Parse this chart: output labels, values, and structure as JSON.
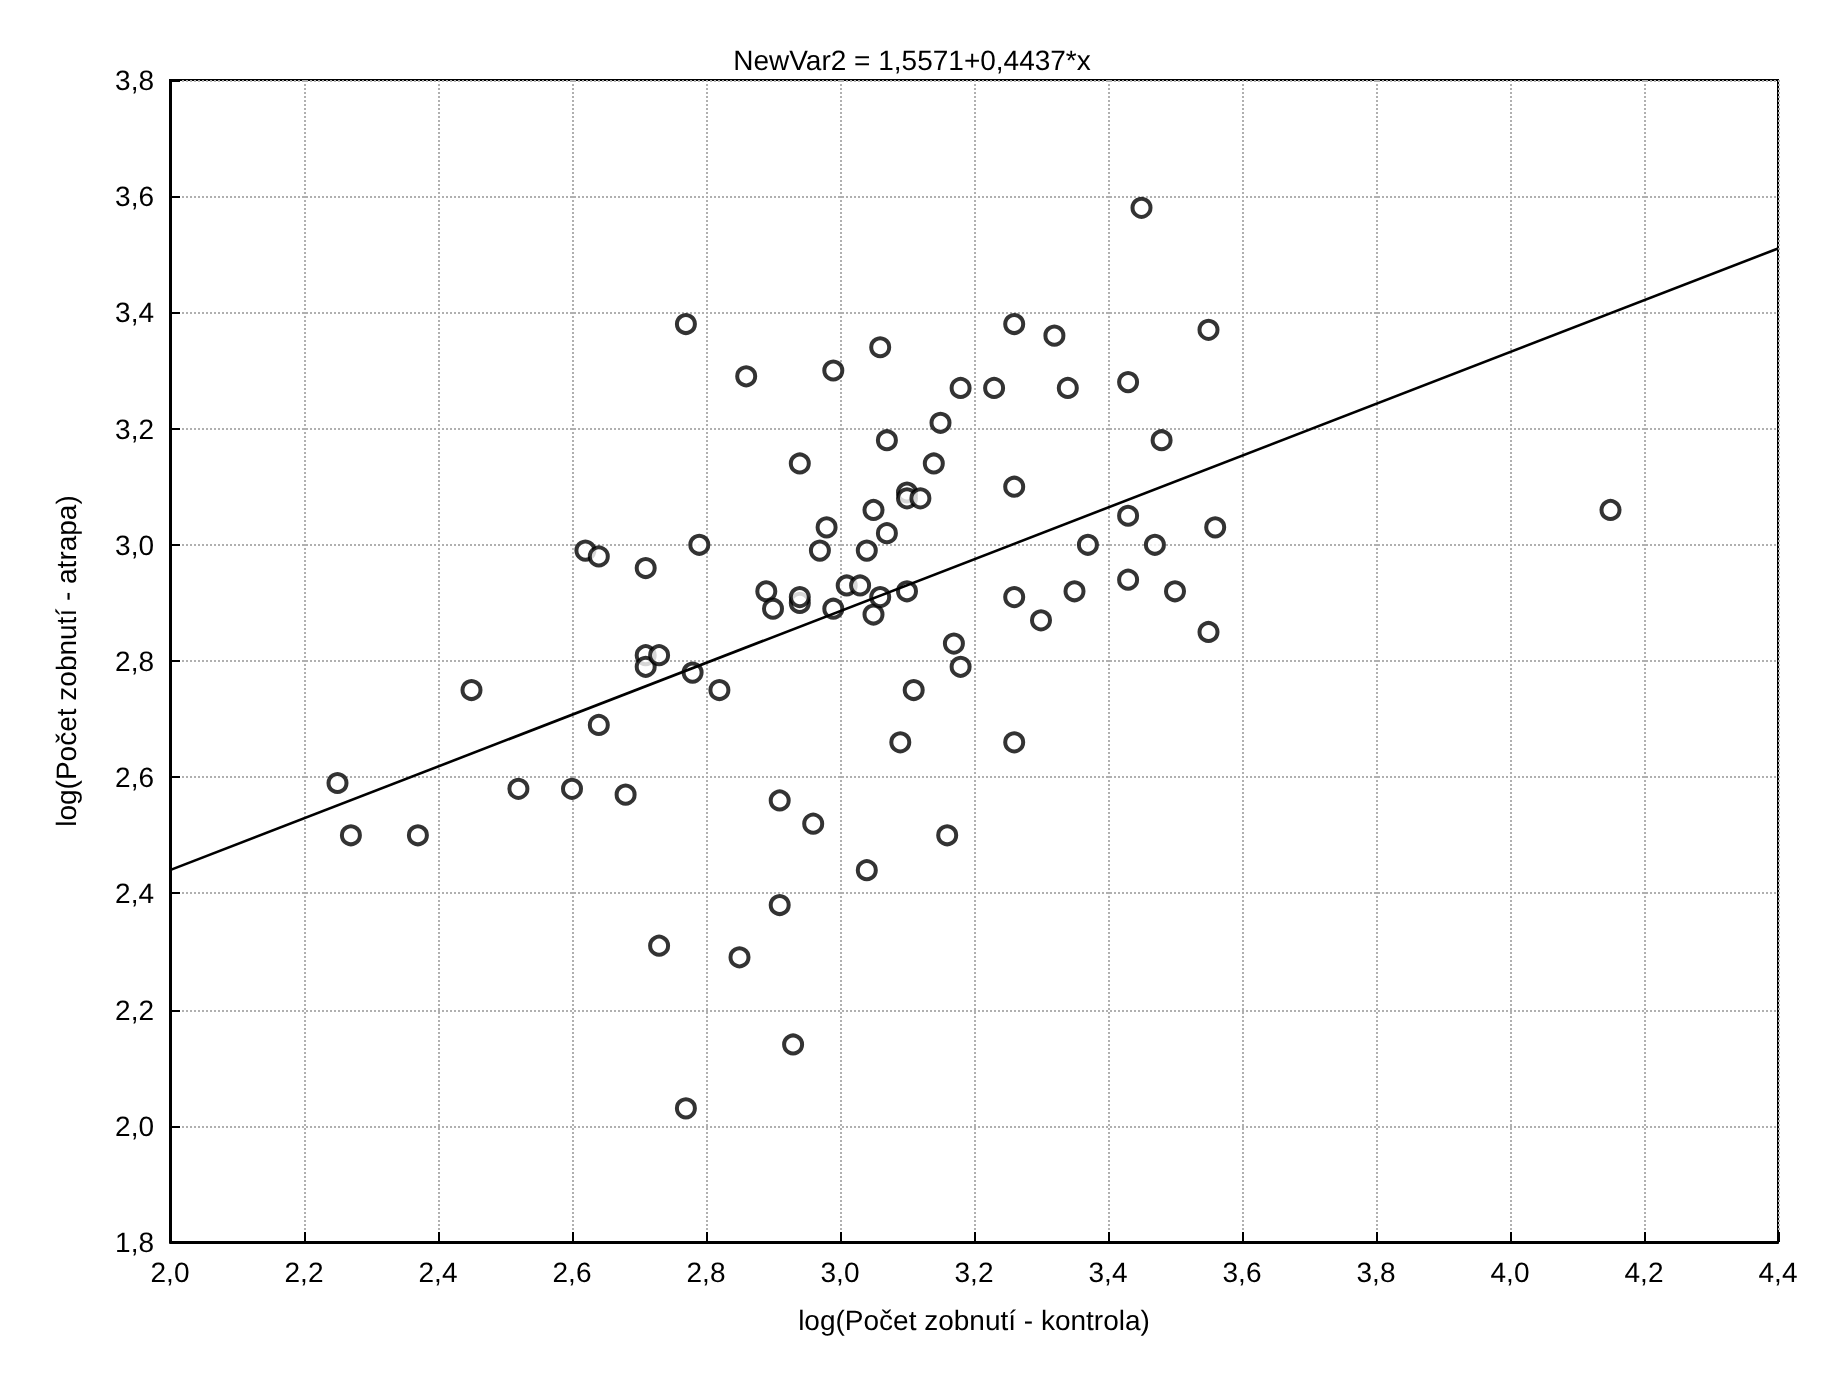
{
  "chart_data": {
    "type": "scatter",
    "title": "NewVar2 = 1,5571+0,4437*x",
    "xlabel": "log(Počet zobnutí - kontrola)",
    "ylabel": "log(Počet zobnutí - atrapa)",
    "grid": true,
    "marker": "circle",
    "xlim": [
      2.0,
      4.4
    ],
    "ylim": [
      1.8,
      3.8
    ],
    "xticks": [
      {
        "value": 2.0,
        "label": "2,0"
      },
      {
        "value": 2.2,
        "label": "2,2"
      },
      {
        "value": 2.4,
        "label": "2,4"
      },
      {
        "value": 2.6,
        "label": "2,6"
      },
      {
        "value": 2.8,
        "label": "2,8"
      },
      {
        "value": 3.0,
        "label": "3,0"
      },
      {
        "value": 3.2,
        "label": "3,2"
      },
      {
        "value": 3.4,
        "label": "3,4"
      },
      {
        "value": 3.6,
        "label": "3,6"
      },
      {
        "value": 3.8,
        "label": "3,8"
      },
      {
        "value": 4.0,
        "label": "4,0"
      },
      {
        "value": 4.2,
        "label": "4,2"
      },
      {
        "value": 4.4,
        "label": "4,4"
      }
    ],
    "yticks": [
      {
        "value": 1.8,
        "label": "1,8"
      },
      {
        "value": 2.0,
        "label": "2,0"
      },
      {
        "value": 2.2,
        "label": "2,2"
      },
      {
        "value": 2.4,
        "label": "2,4"
      },
      {
        "value": 2.6,
        "label": "2,6"
      },
      {
        "value": 2.8,
        "label": "2,8"
      },
      {
        "value": 3.0,
        "label": "3,0"
      },
      {
        "value": 3.2,
        "label": "3,2"
      },
      {
        "value": 3.4,
        "label": "3,4"
      },
      {
        "value": 3.6,
        "label": "3,6"
      },
      {
        "value": 3.8,
        "label": "3,8"
      }
    ],
    "series": [
      {
        "type": "scatter",
        "color": "#000000",
        "x": [
          2.25,
          2.27,
          2.37,
          2.45,
          2.52,
          2.6,
          2.62,
          2.64,
          2.64,
          2.68,
          2.71,
          2.71,
          2.71,
          2.73,
          2.73,
          2.77,
          2.77,
          2.78,
          2.79,
          2.82,
          2.85,
          2.86,
          2.89,
          2.9,
          2.91,
          2.91,
          2.93,
          2.94,
          2.94,
          2.94,
          2.96,
          2.97,
          2.98,
          2.99,
          2.99,
          3.01,
          3.03,
          3.04,
          3.04,
          3.05,
          3.05,
          3.06,
          3.06,
          3.07,
          3.07,
          3.09,
          3.1,
          3.1,
          3.1,
          3.11,
          3.12,
          3.14,
          3.15,
          3.16,
          3.17,
          3.18,
          3.18,
          3.23,
          3.26,
          3.26,
          3.26,
          3.26,
          3.3,
          3.32,
          3.34,
          3.35,
          3.37,
          3.43,
          3.43,
          3.43,
          3.45,
          3.47,
          3.48,
          3.5,
          3.55,
          3.55,
          3.56,
          4.15
        ],
        "values": [
          2.59,
          2.5,
          2.5,
          2.75,
          2.58,
          2.58,
          2.99,
          2.98,
          2.69,
          2.57,
          2.96,
          2.81,
          2.79,
          2.81,
          2.31,
          3.38,
          2.03,
          2.78,
          3.0,
          2.75,
          2.29,
          3.29,
          2.92,
          2.89,
          2.56,
          2.38,
          2.14,
          3.14,
          2.9,
          2.91,
          2.52,
          2.99,
          3.03,
          2.89,
          3.3,
          2.93,
          2.93,
          2.44,
          2.99,
          3.06,
          2.88,
          3.34,
          2.91,
          3.02,
          3.18,
          2.66,
          3.09,
          3.08,
          2.92,
          2.75,
          3.08,
          3.14,
          3.21,
          2.5,
          2.83,
          3.27,
          2.79,
          3.27,
          3.38,
          3.1,
          2.91,
          2.66,
          2.87,
          3.36,
          3.27,
          2.92,
          3.0,
          3.28,
          3.05,
          2.94,
          3.58,
          3.0,
          3.18,
          2.92,
          3.37,
          2.85,
          3.03,
          3.06
        ]
      },
      {
        "type": "line",
        "color": "#000000",
        "marker": "none",
        "x": [
          2.0,
          4.4
        ],
        "values": [
          2.44,
          3.51
        ]
      }
    ]
  }
}
